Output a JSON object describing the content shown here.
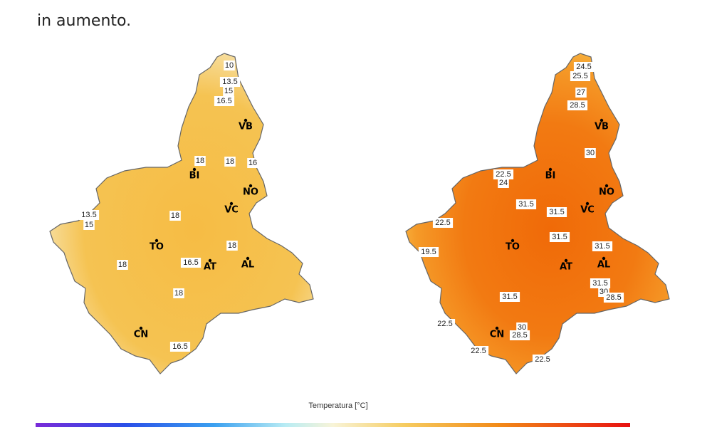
{
  "header": {
    "text": "in aumento."
  },
  "maps": [
    {
      "cities": [
        {
          "label": "VB"
        },
        {
          "label": "BI"
        },
        {
          "label": "NO"
        },
        {
          "label": "VC"
        },
        {
          "label": "TO"
        },
        {
          "label": "AT"
        },
        {
          "label": "AL"
        },
        {
          "label": "CN"
        }
      ],
      "isotherms": [
        {
          "label": "10"
        },
        {
          "label": "13.5"
        },
        {
          "label": "15"
        },
        {
          "label": "16.5"
        },
        {
          "label": "18"
        },
        {
          "label": "18"
        },
        {
          "label": "16"
        },
        {
          "label": "18"
        },
        {
          "label": "13.5"
        },
        {
          "label": "15"
        },
        {
          "label": "16.5"
        },
        {
          "label": "18"
        },
        {
          "label": "18"
        },
        {
          "label": "18"
        },
        {
          "label": "16.5"
        }
      ]
    },
    {
      "cities": [
        {
          "label": "VB"
        },
        {
          "label": "BI"
        },
        {
          "label": "NO"
        },
        {
          "label": "VC"
        },
        {
          "label": "TO"
        },
        {
          "label": "AT"
        },
        {
          "label": "AL"
        },
        {
          "label": "CN"
        }
      ],
      "isotherms": [
        {
          "label": "24.5"
        },
        {
          "label": "25.5"
        },
        {
          "label": "27"
        },
        {
          "label": "28.5"
        },
        {
          "label": "30"
        },
        {
          "label": "22.5"
        },
        {
          "label": "24"
        },
        {
          "label": "22.5"
        },
        {
          "label": "31.5"
        },
        {
          "label": "31.5"
        },
        {
          "label": "31.5"
        },
        {
          "label": "19.5"
        },
        {
          "label": "31.5"
        },
        {
          "label": "31.5"
        },
        {
          "label": "30"
        },
        {
          "label": "28.5"
        },
        {
          "label": "31.5"
        },
        {
          "label": "22.5"
        },
        {
          "label": "30"
        },
        {
          "label": "28.5"
        },
        {
          "label": "22.5"
        },
        {
          "label": "22.5"
        }
      ]
    }
  ],
  "colorbar": {
    "title": "Temperatura [°C]"
  }
}
